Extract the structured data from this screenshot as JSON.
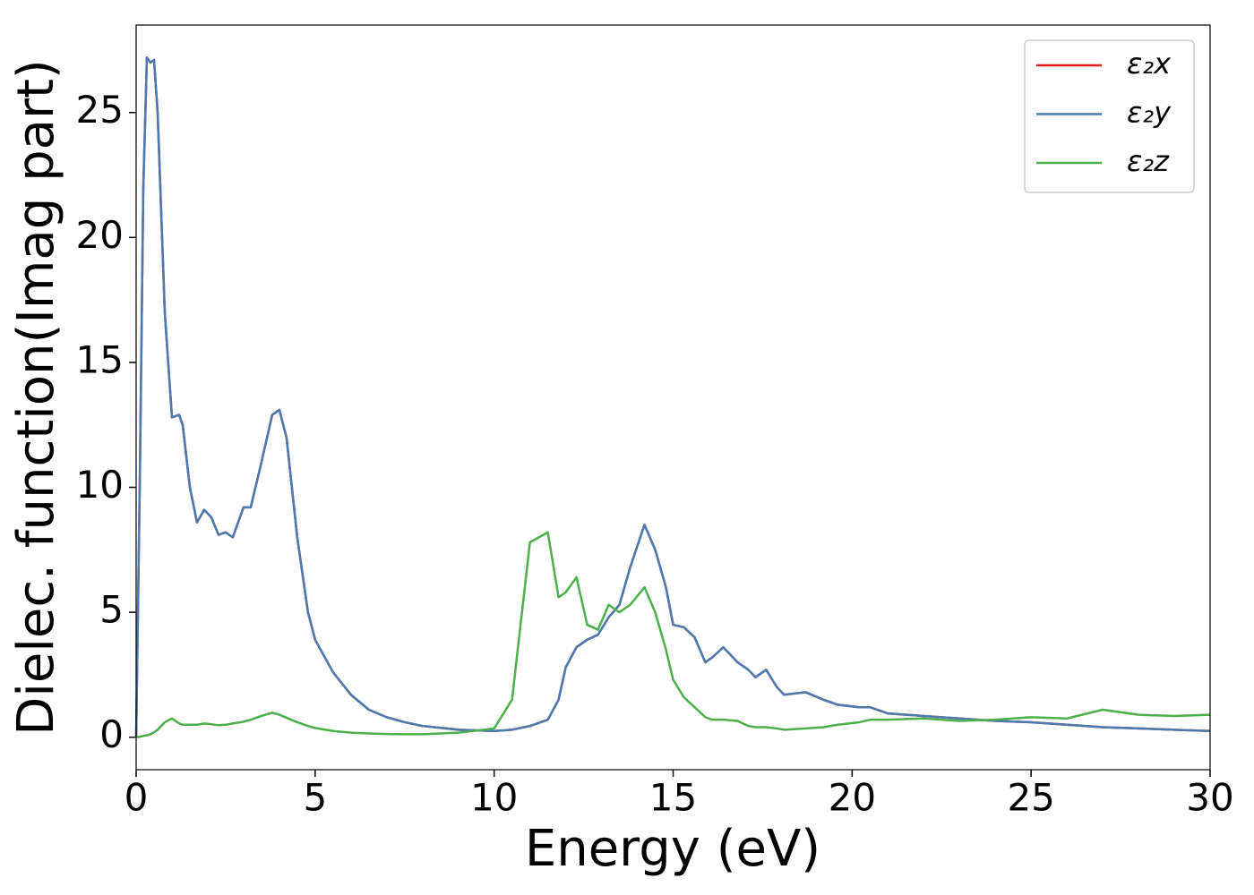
{
  "chart_data": {
    "type": "line",
    "xlabel": "Energy (eV)",
    "ylabel": "Dielec. function(Imag part)",
    "x": [
      0,
      0.1,
      0.2,
      0.3,
      0.4,
      0.5,
      0.6,
      0.8,
      1.0,
      1.2,
      1.3,
      1.5,
      1.7,
      1.9,
      2.1,
      2.3,
      2.5,
      2.7,
      3.0,
      3.2,
      3.5,
      3.8,
      4.0,
      4.2,
      4.5,
      4.8,
      5.0,
      5.5,
      6,
      6.5,
      7,
      7.5,
      8,
      9,
      10,
      10.5,
      11,
      11.5,
      11.8,
      12,
      12.3,
      12.6,
      12.9,
      13.2,
      13.5,
      13.8,
      14.2,
      14.5,
      14.8,
      15.0,
      15.3,
      15.6,
      15.9,
      16.1,
      16.4,
      16.8,
      17.1,
      17.3,
      17.6,
      17.9,
      18.1,
      18.7,
      19.2,
      19.6,
      20.2,
      20.5,
      21,
      22,
      23,
      24,
      25,
      26,
      27,
      28,
      29,
      30
    ],
    "series": [
      {
        "name": "ε₂x",
        "color": "#e41a1c",
        "values": [
          0,
          10,
          22,
          27.2,
          27,
          27.1,
          25,
          17,
          12.8,
          12.9,
          12.5,
          10,
          8.6,
          9.1,
          8.8,
          8.1,
          8.2,
          8.0,
          9.2,
          9.2,
          11,
          12.9,
          13.1,
          12,
          8,
          5,
          3.9,
          2.6,
          1.7,
          1.1,
          0.8,
          0.6,
          0.45,
          0.3,
          0.25,
          0.3,
          0.45,
          0.7,
          1.5,
          2.8,
          3.6,
          3.9,
          4.1,
          4.8,
          5.3,
          6.8,
          8.5,
          7.5,
          6,
          4.5,
          4.4,
          4,
          3.0,
          3.2,
          3.6,
          3.0,
          2.7,
          2.4,
          2.7,
          2.0,
          1.7,
          1.8,
          1.5,
          1.3,
          1.2,
          1.2,
          0.95,
          0.85,
          0.75,
          0.65,
          0.6,
          0.5,
          0.4,
          0.35,
          0.3,
          0.25
        ]
      },
      {
        "name": "ε₂y",
        "color": "#4a7bb0",
        "values": [
          0,
          10,
          22,
          27.2,
          27,
          27.1,
          25,
          17,
          12.8,
          12.9,
          12.5,
          10,
          8.6,
          9.1,
          8.8,
          8.1,
          8.2,
          8.0,
          9.2,
          9.2,
          11,
          12.9,
          13.1,
          12,
          8,
          5,
          3.9,
          2.6,
          1.7,
          1.1,
          0.8,
          0.6,
          0.45,
          0.3,
          0.25,
          0.3,
          0.45,
          0.7,
          1.5,
          2.8,
          3.6,
          3.9,
          4.1,
          4.8,
          5.3,
          6.8,
          8.5,
          7.5,
          6,
          4.5,
          4.4,
          4,
          3.0,
          3.2,
          3.6,
          3.0,
          2.7,
          2.4,
          2.7,
          2.0,
          1.7,
          1.8,
          1.5,
          1.3,
          1.2,
          1.2,
          0.95,
          0.85,
          0.75,
          0.65,
          0.6,
          0.5,
          0.4,
          0.35,
          0.3,
          0.25
        ]
      },
      {
        "name": "ε₂z",
        "color": "#4daf4a",
        "values": [
          0,
          0.02,
          0.05,
          0.08,
          0.12,
          0.2,
          0.3,
          0.6,
          0.75,
          0.55,
          0.5,
          0.5,
          0.5,
          0.55,
          0.52,
          0.48,
          0.5,
          0.55,
          0.62,
          0.7,
          0.85,
          0.98,
          0.9,
          0.78,
          0.6,
          0.45,
          0.37,
          0.25,
          0.18,
          0.15,
          0.13,
          0.12,
          0.12,
          0.18,
          0.35,
          1.5,
          7.8,
          8.2,
          5.6,
          5.8,
          6.4,
          4.5,
          4.3,
          5.3,
          5.0,
          5.3,
          6.0,
          5.0,
          3.5,
          2.3,
          1.6,
          1.2,
          0.8,
          0.7,
          0.7,
          0.65,
          0.45,
          0.4,
          0.4,
          0.35,
          0.3,
          0.35,
          0.4,
          0.5,
          0.6,
          0.7,
          0.7,
          0.75,
          0.65,
          0.7,
          0.8,
          0.75,
          1.1,
          0.9,
          0.85,
          0.9
        ]
      }
    ],
    "xlim": [
      0,
      30
    ],
    "xticks": [
      0,
      5,
      10,
      15,
      20,
      25,
      30
    ],
    "ylim": [
      -1.3,
      28.5
    ],
    "yticks": [
      0,
      5,
      10,
      15,
      20,
      25
    ],
    "grid": false,
    "legend": "upper right"
  }
}
